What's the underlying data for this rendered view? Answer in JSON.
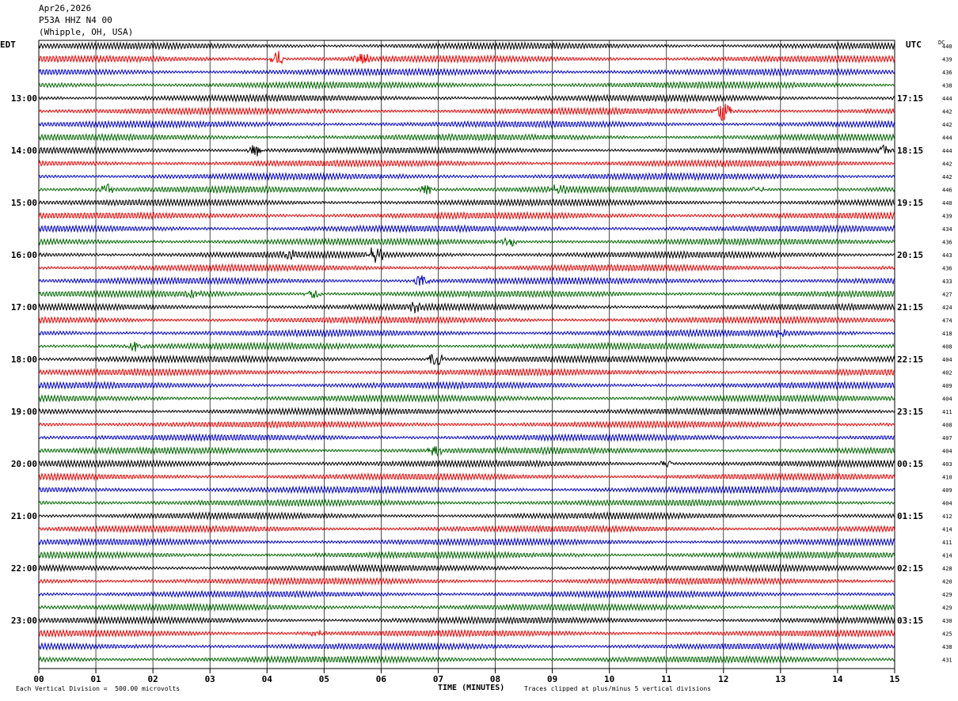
{
  "header": {
    "date": "Apr26,2026",
    "station": "P53A HHZ N4 00",
    "location": "(Whipple, OH, USA)"
  },
  "left_tz": "EDT",
  "right_tz": "UTC",
  "dc_label": "DC",
  "footer": {
    "scale_note": "Each Vertical Division =  500.00 microvolts",
    "xlabel": "TIME (MINUTES)",
    "clip_note": "Traces clipped at plus/minus 5 vertical divisions"
  },
  "colors": {
    "trace_cycle": [
      "#000000",
      "#ee0000",
      "#0000cc",
      "#006600"
    ],
    "grid": "#000000"
  },
  "chart_data": {
    "type": "line",
    "description_units": "helicorder: each row is 15 minutes of ground velocity",
    "xlim": [
      0,
      15
    ],
    "x_ticks": [
      "00",
      "01",
      "02",
      "03",
      "04",
      "05",
      "06",
      "07",
      "08",
      "09",
      "10",
      "11",
      "12",
      "13",
      "14",
      "15"
    ],
    "left_hour_labels": [
      "13:00",
      "14:00",
      "15:00",
      "16:00",
      "17:00",
      "18:00",
      "19:00",
      "20:00",
      "21:00",
      "22:00",
      "23:00"
    ],
    "right_hour_labels": [
      "17:15",
      "18:15",
      "19:15",
      "20:15",
      "21:15",
      "22:15",
      "23:15",
      "00:15",
      "01:15",
      "02:15",
      "03:15"
    ],
    "dc_values": [
      440,
      439,
      436,
      438,
      444,
      442,
      442,
      444,
      444,
      442,
      442,
      446,
      440,
      439,
      434,
      436,
      443,
      436,
      433,
      427,
      424,
      474,
      418,
      408,
      404,
      402,
      409,
      404,
      411,
      408,
      407,
      404,
      403,
      410,
      409,
      404,
      412,
      414,
      411,
      414,
      428,
      420,
      429,
      429,
      430,
      425,
      438,
      431
    ],
    "events": [
      {
        "row": 1,
        "minute": 4.2,
        "amp": 2.2
      },
      {
        "row": 1,
        "minute": 5.65,
        "amp": 1.6
      },
      {
        "row": 5,
        "minute": 12.0,
        "amp": 2.6
      },
      {
        "row": 8,
        "minute": 3.8,
        "amp": 1.4
      },
      {
        "row": 8,
        "minute": 14.8,
        "amp": 1.0
      },
      {
        "row": 11,
        "minute": 1.2,
        "amp": 1.2
      },
      {
        "row": 11,
        "minute": 6.8,
        "amp": 1.2
      },
      {
        "row": 11,
        "minute": 9.1,
        "amp": 1.0
      },
      {
        "row": 11,
        "minute": 12.6,
        "amp": 0.8
      },
      {
        "row": 15,
        "minute": 8.25,
        "amp": 1.2
      },
      {
        "row": 16,
        "minute": 4.4,
        "amp": 0.9
      },
      {
        "row": 16,
        "minute": 5.9,
        "amp": 2.1
      },
      {
        "row": 18,
        "minute": 6.7,
        "amp": 1.6
      },
      {
        "row": 19,
        "minute": 2.7,
        "amp": 1.0
      },
      {
        "row": 19,
        "minute": 4.8,
        "amp": 1.1
      },
      {
        "row": 20,
        "minute": 6.6,
        "amp": 1.1
      },
      {
        "row": 22,
        "minute": 13.0,
        "amp": 0.9
      },
      {
        "row": 23,
        "minute": 1.7,
        "amp": 1.2
      },
      {
        "row": 24,
        "minute": 6.95,
        "amp": 2.0
      },
      {
        "row": 31,
        "minute": 6.95,
        "amp": 1.4
      },
      {
        "row": 32,
        "minute": 11.0,
        "amp": 1.0
      },
      {
        "row": 45,
        "minute": 4.9,
        "amp": 1.0
      }
    ]
  }
}
